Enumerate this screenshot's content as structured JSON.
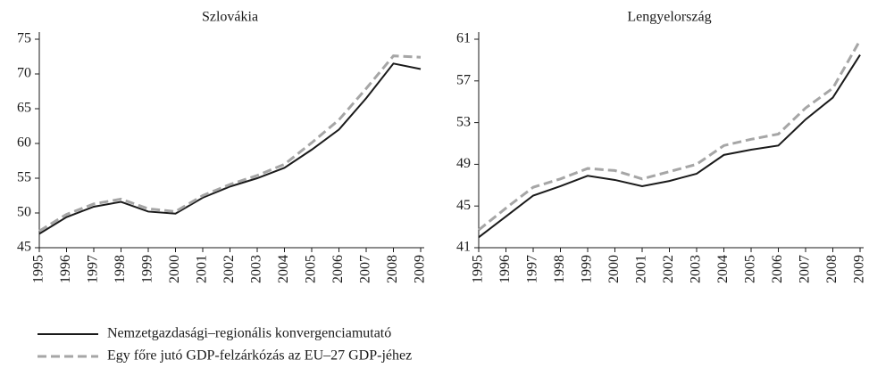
{
  "chart_data": [
    {
      "type": "line",
      "title": "Szlovákia",
      "x": [
        1995,
        1996,
        1997,
        1998,
        1999,
        2000,
        2001,
        2002,
        2003,
        2004,
        2005,
        2006,
        2007,
        2008,
        2009
      ],
      "ylim": [
        45,
        75
      ],
      "yticks": [
        45,
        50,
        55,
        60,
        65,
        70,
        75
      ],
      "series": [
        {
          "name": "Nemzetgazdasági–regionális konvergenciamutató",
          "color": "#1a1a1a",
          "dashed": false,
          "values": [
            47.0,
            49.4,
            50.9,
            51.6,
            50.2,
            49.9,
            52.2,
            53.8,
            55.0,
            56.5,
            59.1,
            62.0,
            66.5,
            71.5,
            70.7
          ]
        },
        {
          "name": "Egy főre jutó GDP-felzárkózás az EU–27 GDP-jéhez",
          "color": "#a6a6a6",
          "dashed": true,
          "values": [
            47.4,
            49.8,
            51.3,
            52.0,
            50.6,
            50.2,
            52.5,
            54.1,
            55.4,
            57.0,
            60.1,
            63.4,
            67.9,
            72.6,
            72.4
          ]
        }
      ]
    },
    {
      "type": "line",
      "title": "Lengyelország",
      "x": [
        1995,
        1996,
        1997,
        1998,
        1999,
        2000,
        2001,
        2002,
        2003,
        2004,
        2005,
        2006,
        2007,
        2008,
        2009
      ],
      "ylim": [
        41,
        61
      ],
      "yticks": [
        41,
        45,
        49,
        53,
        57,
        61
      ],
      "series": [
        {
          "color": "#1a1a1a",
          "dashed": false,
          "values": [
            42.0,
            44.0,
            46.0,
            46.9,
            47.9,
            47.5,
            46.9,
            47.4,
            48.1,
            49.9,
            50.4,
            50.8,
            53.3,
            55.4,
            59.5
          ]
        },
        {
          "color": "#a6a6a6",
          "dashed": true,
          "values": [
            42.7,
            44.8,
            46.8,
            47.6,
            48.6,
            48.4,
            47.6,
            48.3,
            49.0,
            50.8,
            51.4,
            51.9,
            54.4,
            56.3,
            60.9
          ]
        }
      ]
    }
  ]
}
